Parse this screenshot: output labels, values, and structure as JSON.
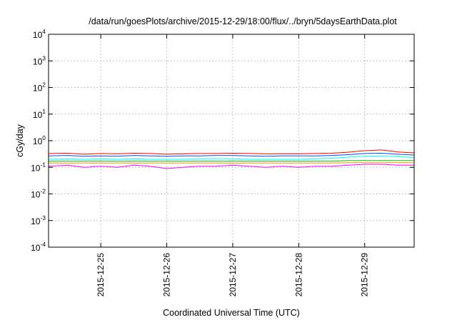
{
  "chart_data": {
    "type": "line",
    "title": "/data/run/goesPlots/archive/2015-12-29/18:00/flux/../bryn/5daysEarthData.plot",
    "xlabel": "Coordinated Universal Time (UTC)",
    "ylabel": "cGy/day",
    "yscale": "log",
    "ylim": [
      0.0001,
      10000
    ],
    "yticks": [
      {
        "value": 0.0001,
        "base": "10",
        "exp": "-4"
      },
      {
        "value": 0.001,
        "base": "10",
        "exp": "-3"
      },
      {
        "value": 0.01,
        "base": "10",
        "exp": "-2"
      },
      {
        "value": 0.1,
        "base": "10",
        "exp": "-1"
      },
      {
        "value": 1,
        "base": "10",
        "exp": "0"
      },
      {
        "value": 10,
        "base": "10",
        "exp": "1"
      },
      {
        "value": 100,
        "base": "10",
        "exp": "2"
      },
      {
        "value": 1000,
        "base": "10",
        "exp": "3"
      },
      {
        "value": 10000,
        "base": "10",
        "exp": "4"
      }
    ],
    "xlim": [
      "2015-12-24T05:00",
      "2015-12-29T18:00"
    ],
    "xticks": [
      {
        "value": "2015-12-25T00:00",
        "label": "2015-12-25"
      },
      {
        "value": "2015-12-26T00:00",
        "label": "2015-12-26"
      },
      {
        "value": "2015-12-27T00:00",
        "label": "2015-12-27"
      },
      {
        "value": "2015-12-28T00:00",
        "label": "2015-12-28"
      },
      {
        "value": "2015-12-29T00:00",
        "label": "2015-12-29"
      }
    ],
    "grid": true,
    "legend": "none",
    "series": [
      {
        "color": "#ff0000",
        "points": [
          [
            "2015-12-24T05:00",
            0.33
          ],
          [
            "2015-12-24T12:00",
            0.34
          ],
          [
            "2015-12-24T18:00",
            0.31
          ],
          [
            "2015-12-25T00:00",
            0.33
          ],
          [
            "2015-12-25T06:00",
            0.32
          ],
          [
            "2015-12-25T12:00",
            0.34
          ],
          [
            "2015-12-25T18:00",
            0.33
          ],
          [
            "2015-12-26T00:00",
            0.31
          ],
          [
            "2015-12-26T06:00",
            0.32
          ],
          [
            "2015-12-26T12:00",
            0.33
          ],
          [
            "2015-12-26T18:00",
            0.33
          ],
          [
            "2015-12-27T00:00",
            0.34
          ],
          [
            "2015-12-27T06:00",
            0.33
          ],
          [
            "2015-12-27T12:00",
            0.32
          ],
          [
            "2015-12-27T18:00",
            0.32
          ],
          [
            "2015-12-28T00:00",
            0.32
          ],
          [
            "2015-12-28T06:00",
            0.33
          ],
          [
            "2015-12-28T12:00",
            0.34
          ],
          [
            "2015-12-28T18:00",
            0.37
          ],
          [
            "2015-12-29T00:00",
            0.42
          ],
          [
            "2015-12-29T06:00",
            0.45
          ],
          [
            "2015-12-29T12:00",
            0.38
          ],
          [
            "2015-12-29T18:00",
            0.35
          ]
        ]
      },
      {
        "color": "#0050ff",
        "points": [
          [
            "2015-12-24T05:00",
            0.27
          ],
          [
            "2015-12-24T12:00",
            0.28
          ],
          [
            "2015-12-24T18:00",
            0.26
          ],
          [
            "2015-12-25T00:00",
            0.27
          ],
          [
            "2015-12-25T06:00",
            0.26
          ],
          [
            "2015-12-25T12:00",
            0.28
          ],
          [
            "2015-12-25T18:00",
            0.27
          ],
          [
            "2015-12-26T00:00",
            0.26
          ],
          [
            "2015-12-26T06:00",
            0.27
          ],
          [
            "2015-12-26T12:00",
            0.27
          ],
          [
            "2015-12-26T18:00",
            0.28
          ],
          [
            "2015-12-27T00:00",
            0.28
          ],
          [
            "2015-12-27T06:00",
            0.27
          ],
          [
            "2015-12-27T12:00",
            0.26
          ],
          [
            "2015-12-27T18:00",
            0.27
          ],
          [
            "2015-12-28T00:00",
            0.27
          ],
          [
            "2015-12-28T06:00",
            0.27
          ],
          [
            "2015-12-28T12:00",
            0.28
          ],
          [
            "2015-12-28T18:00",
            0.3
          ],
          [
            "2015-12-29T00:00",
            0.33
          ],
          [
            "2015-12-29T06:00",
            0.34
          ],
          [
            "2015-12-29T12:00",
            0.31
          ],
          [
            "2015-12-29T18:00",
            0.29
          ]
        ]
      },
      {
        "color": "#00ffff",
        "points": [
          [
            "2015-12-24T05:00",
            0.2
          ],
          [
            "2015-12-24T12:00",
            0.21
          ],
          [
            "2015-12-24T18:00",
            0.2
          ],
          [
            "2015-12-25T00:00",
            0.21
          ],
          [
            "2015-12-25T06:00",
            0.2
          ],
          [
            "2015-12-25T12:00",
            0.21
          ],
          [
            "2015-12-25T18:00",
            0.2
          ],
          [
            "2015-12-26T00:00",
            0.2
          ],
          [
            "2015-12-26T06:00",
            0.2
          ],
          [
            "2015-12-26T12:00",
            0.21
          ],
          [
            "2015-12-26T18:00",
            0.21
          ],
          [
            "2015-12-27T00:00",
            0.21
          ],
          [
            "2015-12-27T06:00",
            0.2
          ],
          [
            "2015-12-27T12:00",
            0.2
          ],
          [
            "2015-12-27T18:00",
            0.2
          ],
          [
            "2015-12-28T00:00",
            0.2
          ],
          [
            "2015-12-28T06:00",
            0.21
          ],
          [
            "2015-12-28T12:00",
            0.22
          ],
          [
            "2015-12-28T18:00",
            0.24
          ],
          [
            "2015-12-29T00:00",
            0.26
          ],
          [
            "2015-12-29T06:00",
            0.27
          ],
          [
            "2015-12-29T12:00",
            0.25
          ],
          [
            "2015-12-29T18:00",
            0.23
          ]
        ]
      },
      {
        "color": "#00c000",
        "points": [
          [
            "2015-12-24T05:00",
            0.17
          ],
          [
            "2015-12-24T12:00",
            0.17
          ],
          [
            "2015-12-24T18:00",
            0.17
          ],
          [
            "2015-12-25T00:00",
            0.17
          ],
          [
            "2015-12-25T06:00",
            0.17
          ],
          [
            "2015-12-25T12:00",
            0.17
          ],
          [
            "2015-12-25T18:00",
            0.17
          ],
          [
            "2015-12-26T00:00",
            0.17
          ],
          [
            "2015-12-26T06:00",
            0.17
          ],
          [
            "2015-12-26T12:00",
            0.17
          ],
          [
            "2015-12-26T18:00",
            0.17
          ],
          [
            "2015-12-27T00:00",
            0.17
          ],
          [
            "2015-12-27T06:00",
            0.17
          ],
          [
            "2015-12-27T12:00",
            0.17
          ],
          [
            "2015-12-27T18:00",
            0.17
          ],
          [
            "2015-12-28T00:00",
            0.17
          ],
          [
            "2015-12-28T06:00",
            0.17
          ],
          [
            "2015-12-28T12:00",
            0.17
          ],
          [
            "2015-12-28T18:00",
            0.18
          ],
          [
            "2015-12-29T00:00",
            0.18
          ],
          [
            "2015-12-29T06:00",
            0.18
          ],
          [
            "2015-12-29T12:00",
            0.18
          ],
          [
            "2015-12-29T18:00",
            0.18
          ]
        ]
      },
      {
        "color": "#ff8c00",
        "points": [
          [
            "2015-12-24T05:00",
            0.145
          ],
          [
            "2015-12-24T12:00",
            0.145
          ],
          [
            "2015-12-24T18:00",
            0.145
          ],
          [
            "2015-12-25T00:00",
            0.145
          ],
          [
            "2015-12-25T06:00",
            0.145
          ],
          [
            "2015-12-25T12:00",
            0.145
          ],
          [
            "2015-12-25T18:00",
            0.145
          ],
          [
            "2015-12-26T00:00",
            0.145
          ],
          [
            "2015-12-26T06:00",
            0.145
          ],
          [
            "2015-12-26T12:00",
            0.145
          ],
          [
            "2015-12-26T18:00",
            0.145
          ],
          [
            "2015-12-27T00:00",
            0.145
          ],
          [
            "2015-12-27T06:00",
            0.145
          ],
          [
            "2015-12-27T12:00",
            0.145
          ],
          [
            "2015-12-27T18:00",
            0.145
          ],
          [
            "2015-12-28T00:00",
            0.145
          ],
          [
            "2015-12-28T06:00",
            0.145
          ],
          [
            "2015-12-28T12:00",
            0.145
          ],
          [
            "2015-12-28T18:00",
            0.15
          ],
          [
            "2015-12-29T00:00",
            0.15
          ],
          [
            "2015-12-29T06:00",
            0.15
          ],
          [
            "2015-12-29T12:00",
            0.15
          ],
          [
            "2015-12-29T18:00",
            0.15
          ]
        ]
      },
      {
        "color": "#ff00ff",
        "points": [
          [
            "2015-12-24T05:00",
            0.11
          ],
          [
            "2015-12-24T12:00",
            0.12
          ],
          [
            "2015-12-24T18:00",
            0.1
          ],
          [
            "2015-12-25T00:00",
            0.11
          ],
          [
            "2015-12-25T06:00",
            0.1
          ],
          [
            "2015-12-25T12:00",
            0.12
          ],
          [
            "2015-12-25T18:00",
            0.11
          ],
          [
            "2015-12-26T00:00",
            0.09
          ],
          [
            "2015-12-26T06:00",
            0.1
          ],
          [
            "2015-12-26T12:00",
            0.11
          ],
          [
            "2015-12-26T18:00",
            0.11
          ],
          [
            "2015-12-27T00:00",
            0.12
          ],
          [
            "2015-12-27T06:00",
            0.11
          ],
          [
            "2015-12-27T12:00",
            0.1
          ],
          [
            "2015-12-27T18:00",
            0.11
          ],
          [
            "2015-12-28T00:00",
            0.1
          ],
          [
            "2015-12-28T06:00",
            0.11
          ],
          [
            "2015-12-28T12:00",
            0.11
          ],
          [
            "2015-12-28T18:00",
            0.12
          ],
          [
            "2015-12-29T00:00",
            0.13
          ],
          [
            "2015-12-29T06:00",
            0.13
          ],
          [
            "2015-12-29T12:00",
            0.12
          ],
          [
            "2015-12-29T18:00",
            0.12
          ]
        ]
      }
    ]
  }
}
